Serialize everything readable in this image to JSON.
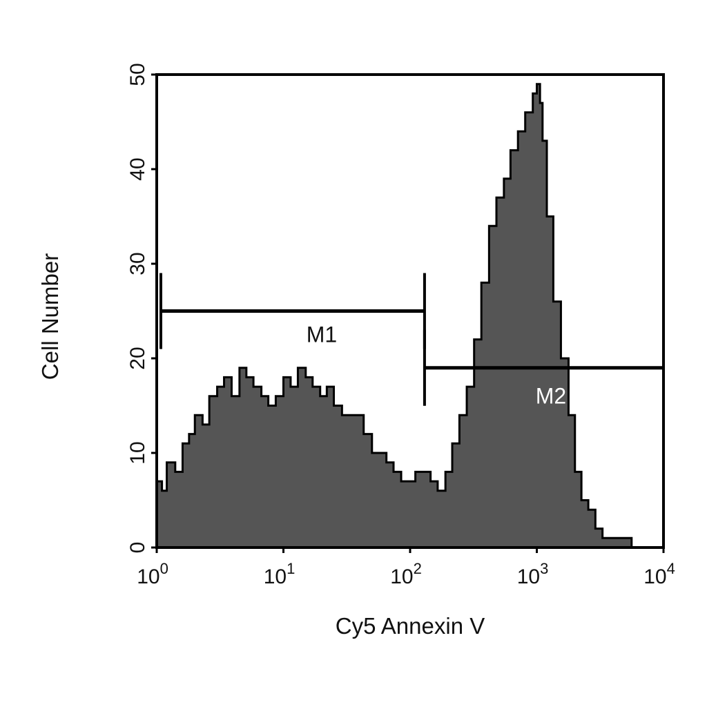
{
  "chart_data": {
    "type": "area",
    "xlabel": "Cy5 Annexin V",
    "ylabel": "Cell Number",
    "x_scale": "log10",
    "xlim": [
      1,
      10000
    ],
    "ylim": [
      0,
      50
    ],
    "x_ticks": [
      {
        "base": "10",
        "exp": "0",
        "value": 1
      },
      {
        "base": "10",
        "exp": "1",
        "value": 10
      },
      {
        "base": "10",
        "exp": "2",
        "value": 100
      },
      {
        "base": "10",
        "exp": "3",
        "value": 1000
      },
      {
        "base": "10",
        "exp": "4",
        "value": 10000
      }
    ],
    "y_ticks": [
      "0",
      "10",
      "20",
      "30",
      "40",
      "50"
    ],
    "grid": false,
    "fill_color": "#555555",
    "line_color": "#000000",
    "series": [
      {
        "x": [
          1.0,
          1.1,
          1.2,
          1.4,
          1.6,
          1.8,
          2.0,
          2.3,
          2.6,
          3.0,
          3.4,
          3.9,
          4.5,
          5.1,
          5.8,
          6.7,
          7.6,
          8.7,
          10,
          11.4,
          13,
          15,
          17,
          19.5,
          22,
          25,
          29,
          33,
          38,
          43,
          50,
          57,
          65,
          74,
          85,
          97,
          110,
          126,
          145,
          165,
          190,
          215,
          245,
          280,
          320,
          365,
          420,
          480,
          550,
          620,
          710,
          810,
          930,
          1000,
          1060,
          1110,
          1200,
          1350,
          1550,
          1780,
          2000,
          2250,
          2550,
          2900,
          3300,
          3800,
          4300,
          4900,
          5600,
          6400,
          7300,
          8300,
          9500,
          10000
        ],
        "y": [
          7,
          6,
          9,
          8,
          11,
          12,
          14,
          13,
          16,
          17,
          18,
          16,
          19,
          18,
          17,
          16,
          15,
          16,
          18,
          17,
          19,
          18,
          17,
          16,
          17,
          15,
          14,
          14,
          14,
          12,
          10,
          10,
          9,
          8,
          7,
          7,
          8,
          8,
          7,
          6,
          8,
          11,
          14,
          17,
          22,
          28,
          34,
          37,
          39,
          42,
          44,
          46,
          48,
          49,
          47,
          43,
          35,
          26,
          20,
          14,
          8,
          5,
          4,
          2,
          1,
          1,
          1,
          1,
          0,
          0,
          0,
          0,
          0,
          0
        ]
      }
    ],
    "annotations": [
      {
        "text": "M1",
        "x_start": 1,
        "x_end": 130,
        "y": 25,
        "color": "#111111"
      },
      {
        "text": "M2",
        "x_start": 130,
        "x_end": 10000,
        "y": 19,
        "color": "#ffffff"
      }
    ]
  }
}
